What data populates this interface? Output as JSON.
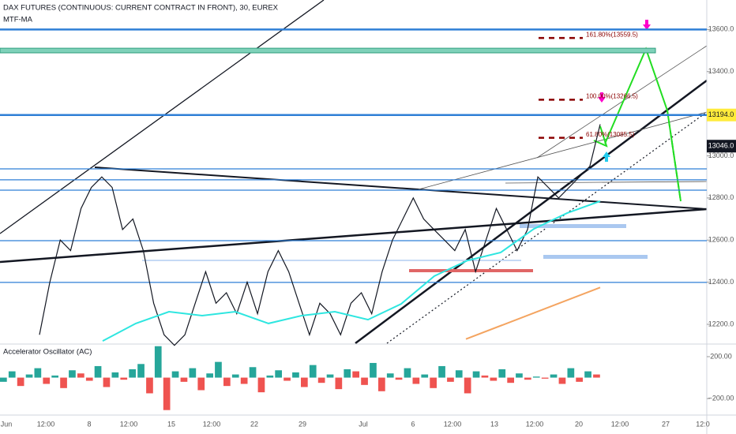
{
  "chart_data": {
    "type": "price-chart",
    "title": "DAX FUTURES (CONTINUOUS: CURRENT CONTRACT IN FRONT), 30, EUREX",
    "subtitle": "MTF-MA",
    "ylim": [
      12110,
      13740
    ],
    "yticks": [
      {
        "value": 12200,
        "label": "12200.0"
      },
      {
        "value": 12400,
        "label": "12400.0"
      },
      {
        "value": 12600,
        "label": "12600.0"
      },
      {
        "value": 12800,
        "label": "12800.0"
      },
      {
        "value": 13000,
        "label": "13000.0"
      },
      {
        "value": 13200,
        "label": "13200.0"
      },
      {
        "value": 13400,
        "label": "13400.0"
      },
      {
        "value": 13600,
        "label": "13600.0"
      }
    ],
    "x_labels": [
      "Jun",
      "12:00",
      "8",
      "12:00",
      "15",
      "12:00",
      "22",
      "29",
      "Jul",
      "6",
      "12:00",
      "13",
      "12:00",
      "20",
      "12:00",
      "27",
      "12:0"
    ],
    "series": [
      {
        "name": "Price",
        "color": "#131722",
        "values": [
          12150,
          12400,
          12600,
          12550,
          12750,
          12850,
          12900,
          12850,
          12650,
          12700,
          12550,
          12300,
          12150,
          12100,
          12150,
          12300,
          12450,
          12300,
          12350,
          12250,
          12400,
          12250,
          12450,
          12550,
          12450,
          12300,
          12150,
          12300,
          12250,
          12150,
          12300,
          12350,
          12250,
          12450,
          12600,
          12700,
          12800,
          12700,
          12650,
          12600,
          12550,
          12650,
          12450,
          12600,
          12750,
          12650,
          12550,
          12650,
          12900,
          12850,
          12800,
          12850,
          12900,
          12950,
          13150
        ]
      },
      {
        "name": "MA",
        "color": "#2ee6e0",
        "values": [
          12121,
          12204,
          12260,
          12241,
          12260,
          12204,
          12241,
          12260,
          12222,
          12297,
          12429,
          12503,
          12541,
          12653,
          12728,
          12785
        ]
      },
      {
        "name": "MA long",
        "color": "#f4a460",
        "values": [
          12130,
          12375
        ]
      }
    ],
    "levels": [
      13600,
      13194,
      12938,
      12886,
      12837,
      12597,
      12399
    ],
    "level_color": "#2f7fd6",
    "band": [
      13489,
      13511
    ],
    "band_color": "#7fd1b9",
    "fib": [
      {
        "value": 13559.5,
        "label": "161.80%(13559.5)"
      },
      {
        "value": 13266.5,
        "label": "100.00%(13266.5)"
      },
      {
        "value": 13085.5,
        "label": "61.80%(13085.5)"
      }
    ],
    "fib_color": "#8b0000",
    "badges": [
      {
        "value": 13194,
        "label": "13194.0",
        "color": "#ffeb3b"
      },
      {
        "value": 13046,
        "label": "13046.0",
        "color": "#131722"
      }
    ],
    "oscillator": {
      "title": "Accelerator Oscillator (AC)",
      "ylim": [
        -350,
        313
      ],
      "yticks": [
        {
          "value": 200,
          "label": "200.00"
        },
        {
          "value": -200,
          "label": "−200.00"
        }
      ],
      "up_color": "#26a69a",
      "down_color": "#ef5350",
      "values": [
        -40,
        60,
        -80,
        30,
        90,
        -60,
        20,
        -100,
        70,
        40,
        -30,
        110,
        -90,
        50,
        -20,
        80,
        130,
        -150,
        300,
        -310,
        60,
        -40,
        90,
        -120,
        40,
        150,
        -80,
        30,
        -60,
        100,
        -140,
        20,
        70,
        -30,
        50,
        -90,
        120,
        -50,
        30,
        -110,
        80,
        60,
        -70,
        140,
        -130,
        40,
        -20,
        90,
        -60,
        30,
        -100,
        110,
        -40,
        70,
        -150,
        60,
        20,
        -30,
        80,
        -50,
        40,
        -20,
        10,
        -10,
        30,
        -60,
        90,
        -40,
        60,
        30
      ]
    }
  }
}
